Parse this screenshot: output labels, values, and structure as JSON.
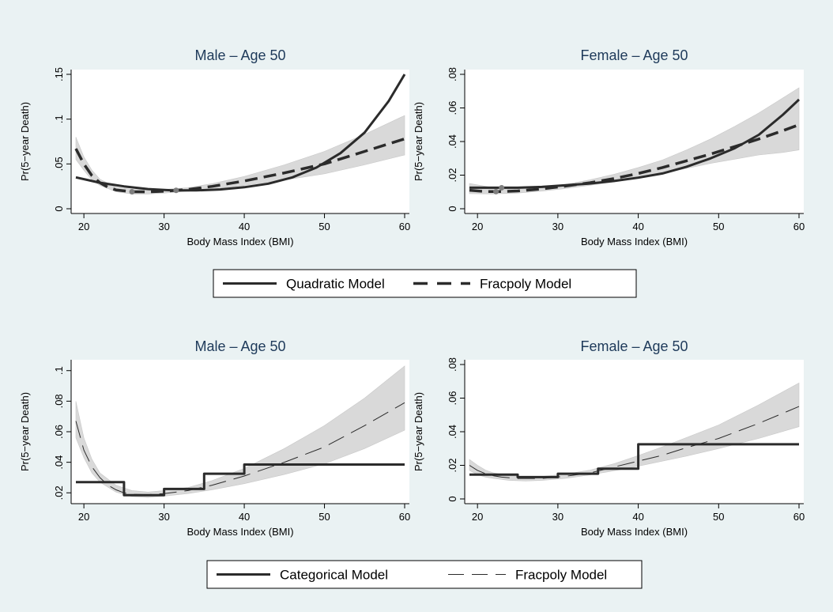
{
  "colors": {
    "background": "#eaf2f3",
    "plot_background": "#ffffff",
    "title": "#1e3a5a",
    "band": "#d9d9d9",
    "line": "#2b2b2b",
    "point": "#7f7f7f"
  },
  "legends": [
    {
      "entries": [
        {
          "label": "Quadratic Model",
          "style": "solid-thick"
        },
        {
          "label": "Fracpoly Model",
          "style": "dashed-thick"
        }
      ]
    },
    {
      "entries": [
        {
          "label": "Categorical Model",
          "style": "solid-thick"
        },
        {
          "label": "Fracpoly Model",
          "style": "dashed-thin"
        }
      ]
    }
  ],
  "chart_data": [
    {
      "type": "line",
      "title": "Male – Age 50",
      "xlabel": "Body Mass Index (BMI)",
      "ylabel": "Pr(5−year Death)",
      "xlim": [
        19,
        60
      ],
      "ylim": [
        0,
        0.15
      ],
      "xticks": [
        20,
        30,
        40,
        50,
        60
      ],
      "yticks": [
        0,
        0.05,
        0.1,
        0.15
      ],
      "ytick_labels": [
        "0",
        ".05",
        ".1",
        ".15"
      ],
      "grid": false,
      "series": [
        {
          "name": "Quadratic Model",
          "style": "solid-thick",
          "x": [
            19,
            22,
            25,
            28,
            31,
            34,
            37,
            40,
            43,
            46,
            49,
            52,
            55,
            58,
            60
          ],
          "y": [
            0.035,
            0.029,
            0.025,
            0.022,
            0.0205,
            0.0205,
            0.0215,
            0.024,
            0.028,
            0.035,
            0.046,
            0.062,
            0.085,
            0.12,
            0.15
          ]
        },
        {
          "name": "Fracpoly Model",
          "style": "dashed-thick",
          "x": [
            19,
            20,
            21,
            22,
            23,
            24,
            26,
            28,
            30,
            33,
            36,
            40,
            45,
            50,
            55,
            60
          ],
          "y": [
            0.067,
            0.05,
            0.037,
            0.029,
            0.024,
            0.021,
            0.019,
            0.0188,
            0.0195,
            0.0215,
            0.025,
            0.031,
            0.04,
            0.05,
            0.064,
            0.078
          ]
        }
      ],
      "confidence_band": {
        "x": [
          19,
          20,
          21,
          22,
          24,
          26,
          28,
          30,
          33,
          36,
          40,
          45,
          50,
          55,
          60
        ],
        "lower": [
          0.055,
          0.043,
          0.032,
          0.026,
          0.019,
          0.0165,
          0.0165,
          0.0175,
          0.0195,
          0.022,
          0.026,
          0.032,
          0.039,
          0.049,
          0.06
        ],
        "upper": [
          0.08,
          0.058,
          0.043,
          0.033,
          0.024,
          0.0215,
          0.021,
          0.0215,
          0.0235,
          0.028,
          0.036,
          0.049,
          0.064,
          0.083,
          0.104
        ]
      },
      "points": {
        "x": [
          26,
          31.5
        ],
        "y": [
          0.019,
          0.0205
        ]
      }
    },
    {
      "type": "line",
      "title": "Female – Age 50",
      "xlabel": "Body Mass Index (BMI)",
      "ylabel": "Pr(5−year Death)",
      "xlim": [
        19,
        60
      ],
      "ylim": [
        0,
        0.08
      ],
      "xticks": [
        20,
        30,
        40,
        50,
        60
      ],
      "yticks": [
        0,
        0.02,
        0.04,
        0.06,
        0.08
      ],
      "ytick_labels": [
        "0",
        ".02",
        ".04",
        ".06",
        ".08"
      ],
      "grid": false,
      "series": [
        {
          "name": "Quadratic Model",
          "style": "solid-thick",
          "x": [
            19,
            22,
            25,
            28,
            31,
            34,
            37,
            40,
            43,
            46,
            49,
            52,
            55,
            58,
            60
          ],
          "y": [
            0.0125,
            0.0125,
            0.0125,
            0.013,
            0.014,
            0.015,
            0.0165,
            0.0185,
            0.021,
            0.025,
            0.03,
            0.036,
            0.044,
            0.056,
            0.065
          ]
        },
        {
          "name": "Fracpoly Model",
          "style": "dashed-thick",
          "x": [
            19,
            21,
            23,
            25,
            28,
            31,
            34,
            37,
            40,
            43,
            46,
            49,
            52,
            55,
            58,
            60
          ],
          "y": [
            0.011,
            0.0102,
            0.0102,
            0.0106,
            0.0118,
            0.0135,
            0.0155,
            0.018,
            0.021,
            0.0245,
            0.0285,
            0.0325,
            0.037,
            0.0415,
            0.0465,
            0.05
          ]
        }
      ],
      "confidence_band": {
        "x": [
          19,
          22,
          25,
          28,
          31,
          34,
          37,
          40,
          43,
          46,
          49,
          52,
          55,
          58,
          60
        ],
        "lower": [
          0.009,
          0.0088,
          0.0093,
          0.0105,
          0.012,
          0.014,
          0.016,
          0.0185,
          0.021,
          0.024,
          0.027,
          0.0295,
          0.032,
          0.0335,
          0.035
        ],
        "upper": [
          0.015,
          0.0125,
          0.012,
          0.013,
          0.0145,
          0.0172,
          0.0205,
          0.0245,
          0.029,
          0.035,
          0.0415,
          0.049,
          0.057,
          0.066,
          0.072
        ]
      },
      "points": {
        "x": [
          22.3,
          23
        ],
        "y": [
          0.0102,
          0.0125
        ]
      }
    },
    {
      "type": "line",
      "title": "Male – Age 50",
      "xlabel": "Body Mass Index (BMI)",
      "ylabel": "Pr(5−year Death)",
      "xlim": [
        19,
        60
      ],
      "ylim": [
        0.016,
        0.104
      ],
      "xticks": [
        20,
        30,
        40,
        50,
        60
      ],
      "yticks": [
        0.02,
        0.04,
        0.06,
        0.08,
        0.1
      ],
      "ytick_labels": [
        ".02",
        ".04",
        ".06",
        ".08",
        ".1"
      ],
      "grid": false,
      "series": [
        {
          "name": "Categorical Model",
          "style": "step-solid-thick",
          "x": [
            19,
            25,
            25,
            30,
            30,
            35,
            35,
            40,
            40,
            60
          ],
          "y": [
            0.027,
            0.027,
            0.0185,
            0.0185,
            0.0225,
            0.0225,
            0.0325,
            0.0325,
            0.0385,
            0.0385
          ]
        },
        {
          "name": "Fracpoly Model",
          "style": "dashed-thin",
          "x": [
            19,
            20,
            21,
            22,
            23,
            24,
            25,
            26,
            28,
            30,
            33,
            36,
            40,
            45,
            50,
            55,
            60
          ],
          "y": [
            0.067,
            0.048,
            0.037,
            0.03,
            0.025,
            0.022,
            0.02,
            0.019,
            0.0188,
            0.0195,
            0.0215,
            0.025,
            0.031,
            0.04,
            0.05,
            0.064,
            0.079
          ]
        }
      ],
      "confidence_band": {
        "x": [
          19,
          20,
          21,
          22,
          24,
          26,
          28,
          30,
          33,
          36,
          40,
          45,
          50,
          55,
          60
        ],
        "lower": [
          0.056,
          0.043,
          0.033,
          0.027,
          0.0205,
          0.0175,
          0.017,
          0.0178,
          0.0195,
          0.022,
          0.026,
          0.032,
          0.039,
          0.049,
          0.061
        ],
        "upper": [
          0.08,
          0.056,
          0.042,
          0.033,
          0.025,
          0.0215,
          0.0205,
          0.0215,
          0.0235,
          0.028,
          0.036,
          0.049,
          0.064,
          0.082,
          0.103
        ]
      }
    },
    {
      "type": "line",
      "title": "Female – Age 50",
      "xlabel": "Body Mass Index (BMI)",
      "ylabel": "Pr(5−year Death)",
      "xlim": [
        19,
        60
      ],
      "ylim": [
        0,
        0.08
      ],
      "xticks": [
        20,
        30,
        40,
        50,
        60
      ],
      "yticks": [
        0,
        0.02,
        0.04,
        0.06,
        0.08
      ],
      "ytick_labels": [
        "0",
        ".02",
        ".04",
        ".06",
        ".08"
      ],
      "grid": false,
      "series": [
        {
          "name": "Categorical Model",
          "style": "step-solid-thick",
          "x": [
            19,
            25,
            25,
            30,
            30,
            35,
            35,
            40,
            40,
            60
          ],
          "y": [
            0.0145,
            0.0145,
            0.013,
            0.013,
            0.015,
            0.015,
            0.018,
            0.018,
            0.0325,
            0.0325
          ]
        },
        {
          "name": "Fracpoly Model",
          "style": "dashed-thin",
          "x": [
            19,
            20,
            21,
            22,
            23,
            25,
            28,
            31,
            34,
            37,
            40,
            43,
            46,
            50,
            55,
            60
          ],
          "y": [
            0.02,
            0.017,
            0.015,
            0.0138,
            0.013,
            0.0122,
            0.0122,
            0.0135,
            0.0155,
            0.019,
            0.0225,
            0.026,
            0.0305,
            0.036,
            0.045,
            0.055
          ]
        }
      ],
      "confidence_band": {
        "x": [
          19,
          20,
          21,
          22,
          24,
          26,
          28,
          31,
          34,
          37,
          40,
          43,
          46,
          50,
          55,
          60
        ],
        "lower": [
          0.017,
          0.0145,
          0.013,
          0.0122,
          0.011,
          0.0107,
          0.011,
          0.0123,
          0.0143,
          0.0168,
          0.0195,
          0.0225,
          0.0255,
          0.03,
          0.036,
          0.043
        ],
        "upper": [
          0.0235,
          0.02,
          0.0172,
          0.0155,
          0.0138,
          0.0133,
          0.0134,
          0.0148,
          0.0172,
          0.021,
          0.0258,
          0.031,
          0.0365,
          0.044,
          0.056,
          0.069
        ]
      }
    }
  ]
}
